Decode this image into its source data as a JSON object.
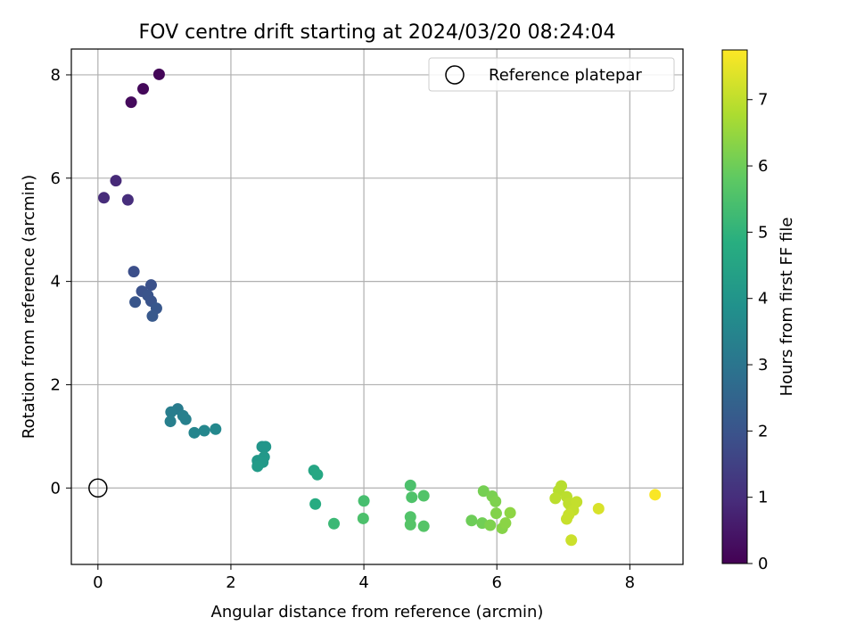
{
  "chart_data": {
    "type": "scatter",
    "title": "FOV centre drift starting at 2024/03/20 08:24:04",
    "xlabel": "Angular distance from reference (arcmin)",
    "ylabel": "Rotation from reference (arcmin)",
    "colorbar_label": "Hours from first FF file",
    "xlim": [
      -0.4,
      8.8
    ],
    "ylim": [
      -1.48,
      8.5
    ],
    "clim": [
      0,
      7.75
    ],
    "xticks": [
      0,
      2,
      4,
      6,
      8
    ],
    "yticks": [
      0,
      2,
      4,
      6,
      8
    ],
    "colorbar_ticks": [
      0,
      1,
      2,
      3,
      4,
      5,
      6,
      7
    ],
    "grid": true,
    "legend": {
      "location": "upper right",
      "entries": [
        "Reference platepar"
      ]
    },
    "reference": {
      "x": 0,
      "y": 0,
      "label": "Reference platepar"
    },
    "points": [
      {
        "x": 0.92,
        "y": 8.01,
        "c": 0.1
      },
      {
        "x": 0.68,
        "y": 7.73,
        "c": 0.15
      },
      {
        "x": 0.5,
        "y": 7.47,
        "c": 0.2
      },
      {
        "x": 0.27,
        "y": 5.95,
        "c": 0.9
      },
      {
        "x": 0.09,
        "y": 5.62,
        "c": 0.95
      },
      {
        "x": 0.45,
        "y": 5.58,
        "c": 1.0
      },
      {
        "x": 0.54,
        "y": 4.19,
        "c": 1.85
      },
      {
        "x": 0.8,
        "y": 3.93,
        "c": 1.9
      },
      {
        "x": 0.66,
        "y": 3.81,
        "c": 1.95
      },
      {
        "x": 0.75,
        "y": 3.73,
        "c": 2.0
      },
      {
        "x": 0.8,
        "y": 3.62,
        "c": 2.0
      },
      {
        "x": 0.56,
        "y": 3.6,
        "c": 2.05
      },
      {
        "x": 0.88,
        "y": 3.48,
        "c": 2.1
      },
      {
        "x": 0.82,
        "y": 3.33,
        "c": 2.15
      },
      {
        "x": 1.2,
        "y": 1.53,
        "c": 3.2
      },
      {
        "x": 1.1,
        "y": 1.47,
        "c": 3.25
      },
      {
        "x": 1.28,
        "y": 1.4,
        "c": 3.3
      },
      {
        "x": 1.32,
        "y": 1.33,
        "c": 3.35
      },
      {
        "x": 1.09,
        "y": 1.29,
        "c": 3.3
      },
      {
        "x": 1.77,
        "y": 1.14,
        "c": 3.6
      },
      {
        "x": 1.6,
        "y": 1.11,
        "c": 3.55
      },
      {
        "x": 1.45,
        "y": 1.07,
        "c": 3.5
      },
      {
        "x": 2.47,
        "y": 0.8,
        "c": 4.0
      },
      {
        "x": 2.52,
        "y": 0.8,
        "c": 4.05
      },
      {
        "x": 2.5,
        "y": 0.6,
        "c": 4.1
      },
      {
        "x": 2.4,
        "y": 0.53,
        "c": 4.1
      },
      {
        "x": 2.48,
        "y": 0.5,
        "c": 4.15
      },
      {
        "x": 2.4,
        "y": 0.42,
        "c": 4.2
      },
      {
        "x": 3.25,
        "y": 0.34,
        "c": 4.55
      },
      {
        "x": 3.3,
        "y": 0.26,
        "c": 4.6
      },
      {
        "x": 3.27,
        "y": -0.31,
        "c": 4.75
      },
      {
        "x": 3.55,
        "y": -0.69,
        "c": 5.2
      },
      {
        "x": 4.0,
        "y": -0.25,
        "c": 5.4
      },
      {
        "x": 3.99,
        "y": -0.59,
        "c": 5.5
      },
      {
        "x": 4.7,
        "y": 0.05,
        "c": 5.5
      },
      {
        "x": 4.72,
        "y": -0.18,
        "c": 5.55
      },
      {
        "x": 4.9,
        "y": -0.15,
        "c": 5.6
      },
      {
        "x": 4.7,
        "y": -0.56,
        "c": 5.6
      },
      {
        "x": 4.7,
        "y": -0.71,
        "c": 5.65
      },
      {
        "x": 4.9,
        "y": -0.74,
        "c": 5.65
      },
      {
        "x": 5.62,
        "y": -0.63,
        "c": 6.0
      },
      {
        "x": 5.78,
        "y": -0.68,
        "c": 6.05
      },
      {
        "x": 5.8,
        "y": -0.06,
        "c": 6.1
      },
      {
        "x": 5.93,
        "y": -0.16,
        "c": 6.15
      },
      {
        "x": 5.98,
        "y": -0.26,
        "c": 6.2
      },
      {
        "x": 5.9,
        "y": -0.72,
        "c": 6.2
      },
      {
        "x": 5.99,
        "y": -0.49,
        "c": 6.25
      },
      {
        "x": 6.08,
        "y": -0.78,
        "c": 6.3
      },
      {
        "x": 6.13,
        "y": -0.68,
        "c": 6.35
      },
      {
        "x": 6.2,
        "y": -0.48,
        "c": 6.4
      },
      {
        "x": 6.97,
        "y": 0.04,
        "c": 6.9
      },
      {
        "x": 6.93,
        "y": -0.05,
        "c": 6.9
      },
      {
        "x": 6.88,
        "y": -0.2,
        "c": 6.95
      },
      {
        "x": 7.05,
        "y": -0.17,
        "c": 6.95
      },
      {
        "x": 7.08,
        "y": -0.3,
        "c": 7.0
      },
      {
        "x": 7.12,
        "y": -0.37,
        "c": 7.0
      },
      {
        "x": 7.2,
        "y": -0.27,
        "c": 7.05
      },
      {
        "x": 7.15,
        "y": -0.43,
        "c": 7.05
      },
      {
        "x": 7.08,
        "y": -0.52,
        "c": 7.1
      },
      {
        "x": 7.05,
        "y": -0.6,
        "c": 7.1
      },
      {
        "x": 7.12,
        "y": -1.01,
        "c": 7.15
      },
      {
        "x": 7.53,
        "y": -0.4,
        "c": 7.3
      },
      {
        "x": 8.38,
        "y": -0.13,
        "c": 7.7
      }
    ]
  }
}
